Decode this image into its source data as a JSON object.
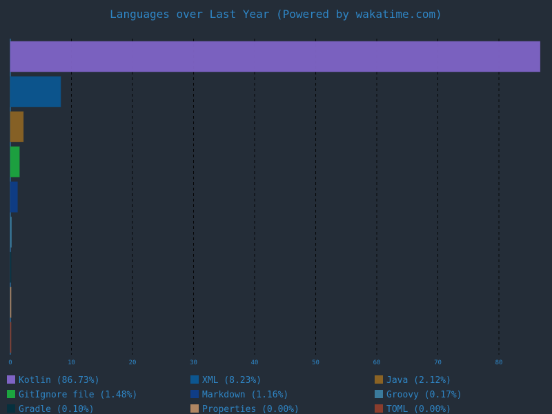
{
  "chart_data": {
    "type": "bar",
    "orientation": "horizontal",
    "title": "Languages over Last Year (Powered by wakatime.com)",
    "xlabel": "",
    "ylabel": "",
    "xlim": [
      0,
      87
    ],
    "x_ticks": [
      0,
      10,
      20,
      30,
      40,
      50,
      60,
      70,
      80
    ],
    "grid": "vertical-dashed",
    "legend_position": "bottom",
    "categories": [
      "Kotlin",
      "XML",
      "Java",
      "GitIgnore file",
      "Markdown",
      "Groovy",
      "Gradle",
      "Properties",
      "TOML"
    ],
    "values": [
      86.73,
      8.23,
      2.12,
      1.48,
      1.16,
      0.17,
      0.1,
      0.0,
      0.0
    ],
    "legend_labels": [
      "Kotlin (86.73%)",
      "XML (8.23%)",
      "Java (2.12%)",
      "GitIgnore file (1.48%)",
      "Markdown (1.16%)",
      "Groovy (0.17%)",
      "Gradle (0.10%)",
      "Properties (0.00%)",
      "TOML (0.00%)"
    ],
    "colors": [
      "#7f64c6",
      "#0c5690",
      "#8b6324",
      "#1ca53f",
      "#0f3d87",
      "#3b7b9c",
      "#06303e",
      "#b08663",
      "#8a3d2d"
    ]
  }
}
